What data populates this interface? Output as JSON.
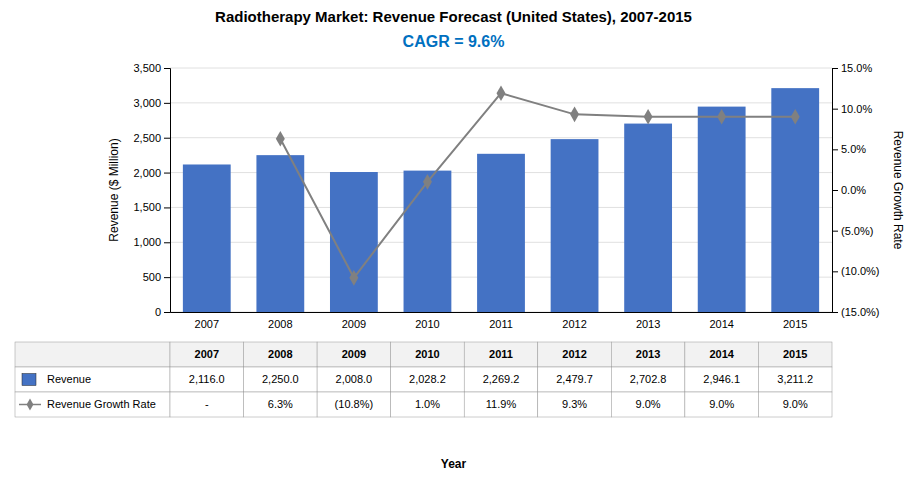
{
  "chart_data": {
    "type": "bar",
    "title": "Radiotherapy Market: Revenue Forecast (United States), 2007-2015",
    "subtitle": "CAGR = 9.6%",
    "xlabel": "Year",
    "ylabel": "Revenue ($ Million)",
    "y2label": "Revenue Growth Rate",
    "categories": [
      "2007",
      "2008",
      "2009",
      "2010",
      "2011",
      "2012",
      "2013",
      "2014",
      "2015"
    ],
    "series": [
      {
        "name": "Revenue",
        "type": "bar",
        "color": "#4472C4",
        "values": [
          2116.0,
          2250.0,
          2008.0,
          2028.2,
          2269.2,
          2479.7,
          2702.8,
          2946.1,
          3211.2
        ],
        "value_labels": [
          "2,116.0",
          "2,250.0",
          "2,008.0",
          "2,028.2",
          "2,269.2",
          "2,479.7",
          "2,702.8",
          "2,946.1",
          "3,211.2"
        ]
      },
      {
        "name": "Revenue Growth Rate",
        "type": "line",
        "axis": "y2",
        "color": "#808080",
        "marker": "diamond",
        "values": [
          null,
          6.3,
          -10.8,
          1.0,
          11.9,
          9.3,
          9.0,
          9.0,
          9.0
        ],
        "value_labels": [
          "-",
          "6.3%",
          "(10.8%)",
          "1.0%",
          "11.9%",
          "9.3%",
          "9.0%",
          "9.0%",
          "9.0%"
        ]
      }
    ],
    "ylim": [
      0,
      3500
    ],
    "yticks": [
      0,
      500,
      {
        "value": 1000,
        "label": "1,000"
      },
      {
        "value": 1500,
        "label": "1,500"
      },
      {
        "value": 2000,
        "label": "2,000"
      },
      {
        "value": 2500,
        "label": "2,500"
      },
      {
        "value": 3000,
        "label": "3,000"
      },
      {
        "value": 3500,
        "label": "3,500"
      }
    ],
    "y2lim": [
      -15.0,
      15.0
    ],
    "y2ticks": [
      {
        "value": -15.0,
        "label": "(15.0%)"
      },
      {
        "value": -10.0,
        "label": "(10.0%)"
      },
      {
        "value": -5.0,
        "label": "(5.0%)"
      },
      {
        "value": 0.0,
        "label": "0.0%"
      },
      {
        "value": 5.0,
        "label": "5.0%"
      },
      {
        "value": 10.0,
        "label": "10.0%"
      },
      {
        "value": 15.0,
        "label": "15.0%"
      }
    ],
    "grid": true,
    "data_labels": true
  }
}
